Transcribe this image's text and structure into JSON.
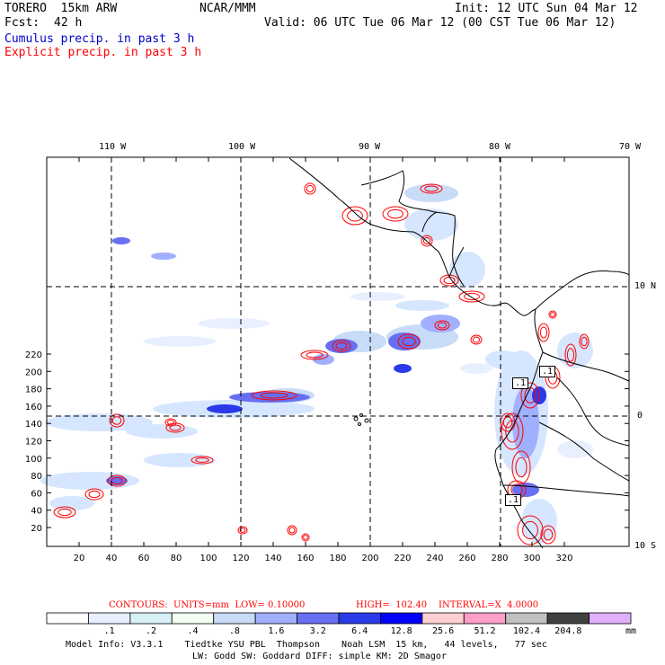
{
  "header": {
    "model": "TORERO  15km ARW",
    "org": "NCAR/MMM",
    "init": "Init: 12 UTC Sun 04 Mar 12",
    "fcst_label": "Fcst:",
    "fcst_value": "42 h",
    "valid": "Valid: 06 UTC Tue 06 Mar 12 (00 CST Tue 06 Mar 12)",
    "legend_cumulus": "Cumulus precip. in past 3 h",
    "legend_explicit": "Explicit precip. in past 3 h"
  },
  "colors": {
    "cumulus": "#0000cc",
    "explicit": "#ff0000",
    "coast": "#000000",
    "grid": "#000000",
    "scale": [
      "#ffffff",
      "#e8f0ff",
      "#d8f0f8",
      "#f4fff4",
      "#c8dcf8",
      "#a0b0ff",
      "#6670f0",
      "#2a3ae8",
      "#0000ff",
      "#ffd0d0",
      "#ff9ec8",
      "#c0c0c0",
      "#404040",
      "#e0b0ff"
    ]
  },
  "map": {
    "top_lon_labels": [
      "110 W",
      "100 W",
      "90 W",
      "80 W",
      "70 W"
    ],
    "right_lat_labels": [
      "10 N",
      "0",
      "10 S"
    ],
    "left_y_ticks": [
      "20",
      "40",
      "60",
      "80",
      "100",
      "120",
      "140",
      "160",
      "180",
      "200",
      "220"
    ],
    "bottom_x_ticks": [
      "20",
      "40",
      "60",
      "80",
      "100",
      "120",
      "140",
      "160",
      "180",
      "200",
      "220",
      "240",
      "260",
      "280",
      "300",
      "320"
    ],
    "point_labels": [
      ".1",
      ".1",
      ".1"
    ]
  },
  "contour_info": {
    "units": "CONTOURS:  UNITS=mm  LOW= 0.10000",
    "high": "HIGH=  102.40",
    "interval": "INTERVAL=X  4.0000"
  },
  "colorbar": {
    "labels": [
      ".1",
      ".2",
      ".4",
      ".8",
      "1.6",
      "3.2",
      "6.4",
      "12.8",
      "25.6",
      "51.2",
      "102.4",
      "204.8"
    ],
    "unit": "mm"
  },
  "footer": {
    "line1": "Model Info: V3.3.1    Tiedtke YSU PBL  Thompson    Noah LSM  15 km,   44 levels,   77 sec",
    "line2": "LW: Godd SW: Goddard DIFF: simple KM: 2D Smagor"
  }
}
